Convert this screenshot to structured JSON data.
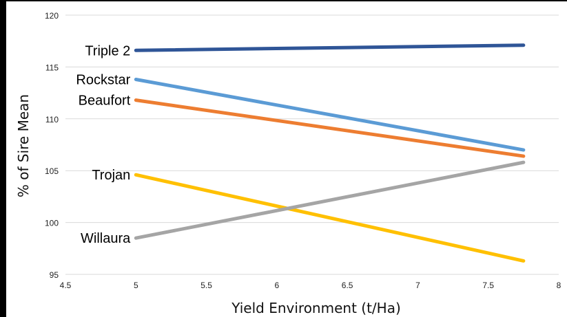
{
  "chart_data": {
    "type": "line",
    "xlabel": "Yield Environment (t/Ha)",
    "ylabel": "% of Sire Mean",
    "xlim": [
      4.5,
      8
    ],
    "ylim": [
      95,
      120
    ],
    "x_ticks": [
      "4.5",
      "5",
      "5.5",
      "6",
      "6.5",
      "7",
      "7.5",
      "8"
    ],
    "y_ticks": [
      "95",
      "100",
      "105",
      "110",
      "115",
      "120"
    ],
    "grid": "horizontal",
    "legend": "labels at line starts",
    "series": [
      {
        "name": "Triple 2",
        "color": "#2f5597",
        "x": [
          5,
          7.75
        ],
        "y": [
          116.6,
          117.1
        ]
      },
      {
        "name": "Rockstar",
        "color": "#5b9bd5",
        "x": [
          5,
          7.75
        ],
        "y": [
          113.8,
          107.0
        ]
      },
      {
        "name": "Beaufort",
        "color": "#ed7d31",
        "x": [
          5,
          7.75
        ],
        "y": [
          111.8,
          106.4
        ]
      },
      {
        "name": "Trojan",
        "color": "#ffc000",
        "x": [
          5,
          7.75
        ],
        "y": [
          104.6,
          96.3
        ]
      },
      {
        "name": "Willaura",
        "color": "#a5a5a5",
        "x": [
          5,
          7.75
        ],
        "y": [
          98.5,
          105.8
        ]
      }
    ]
  }
}
